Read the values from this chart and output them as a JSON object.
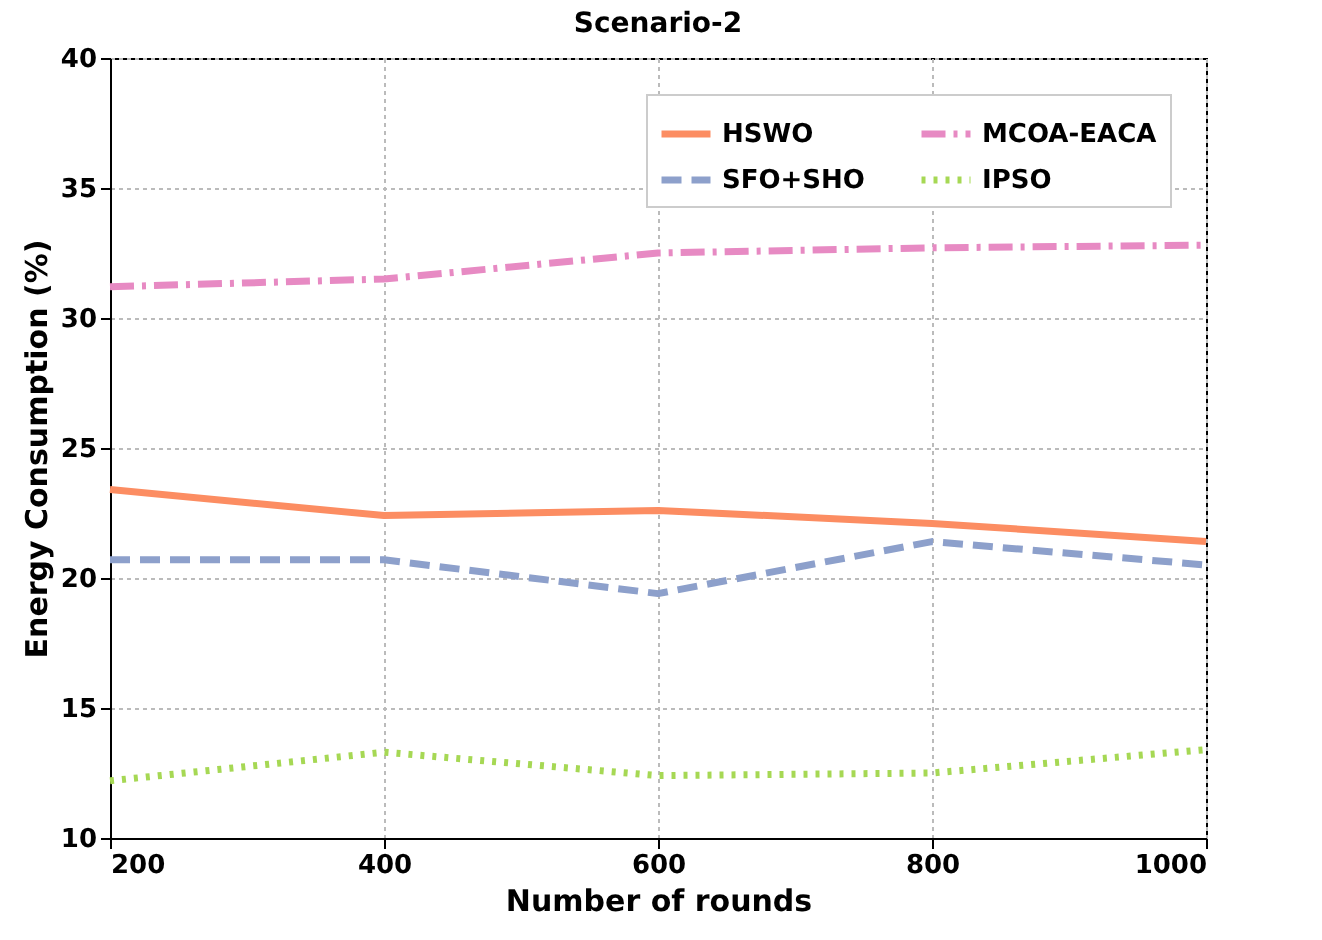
{
  "chart_data": {
    "type": "line",
    "title": "Scenario-2",
    "xlabel": "Number of rounds",
    "ylabel": "Energy Consumption (%)",
    "x": [
      200,
      400,
      600,
      800,
      1000
    ],
    "series": [
      {
        "name": "HSWO",
        "color": "#fc8d62",
        "line_style": "solid",
        "values": [
          23.4,
          22.4,
          22.6,
          22.1,
          21.4
        ]
      },
      {
        "name": "SFO+SHO",
        "color": "#8da0cb",
        "line_style": "dashed",
        "values": [
          20.7,
          20.7,
          19.4,
          21.4,
          20.5
        ]
      },
      {
        "name": "MCOA-EACA",
        "color": "#e78ac3",
        "line_style": "dashdot",
        "values": [
          31.2,
          31.5,
          32.5,
          32.7,
          32.8
        ]
      },
      {
        "name": "IPSO",
        "color": "#a6d854",
        "line_style": "dotted",
        "values": [
          12.2,
          13.3,
          12.4,
          12.5,
          13.4
        ]
      }
    ],
    "xlim": [
      200,
      1000
    ],
    "xticks": [
      200,
      400,
      600,
      800,
      1000
    ],
    "ylim": [
      10,
      40
    ],
    "yticks": [
      10,
      15,
      20,
      25,
      30,
      35,
      40
    ],
    "grid": true,
    "legend": "top right",
    "marker": "none"
  }
}
